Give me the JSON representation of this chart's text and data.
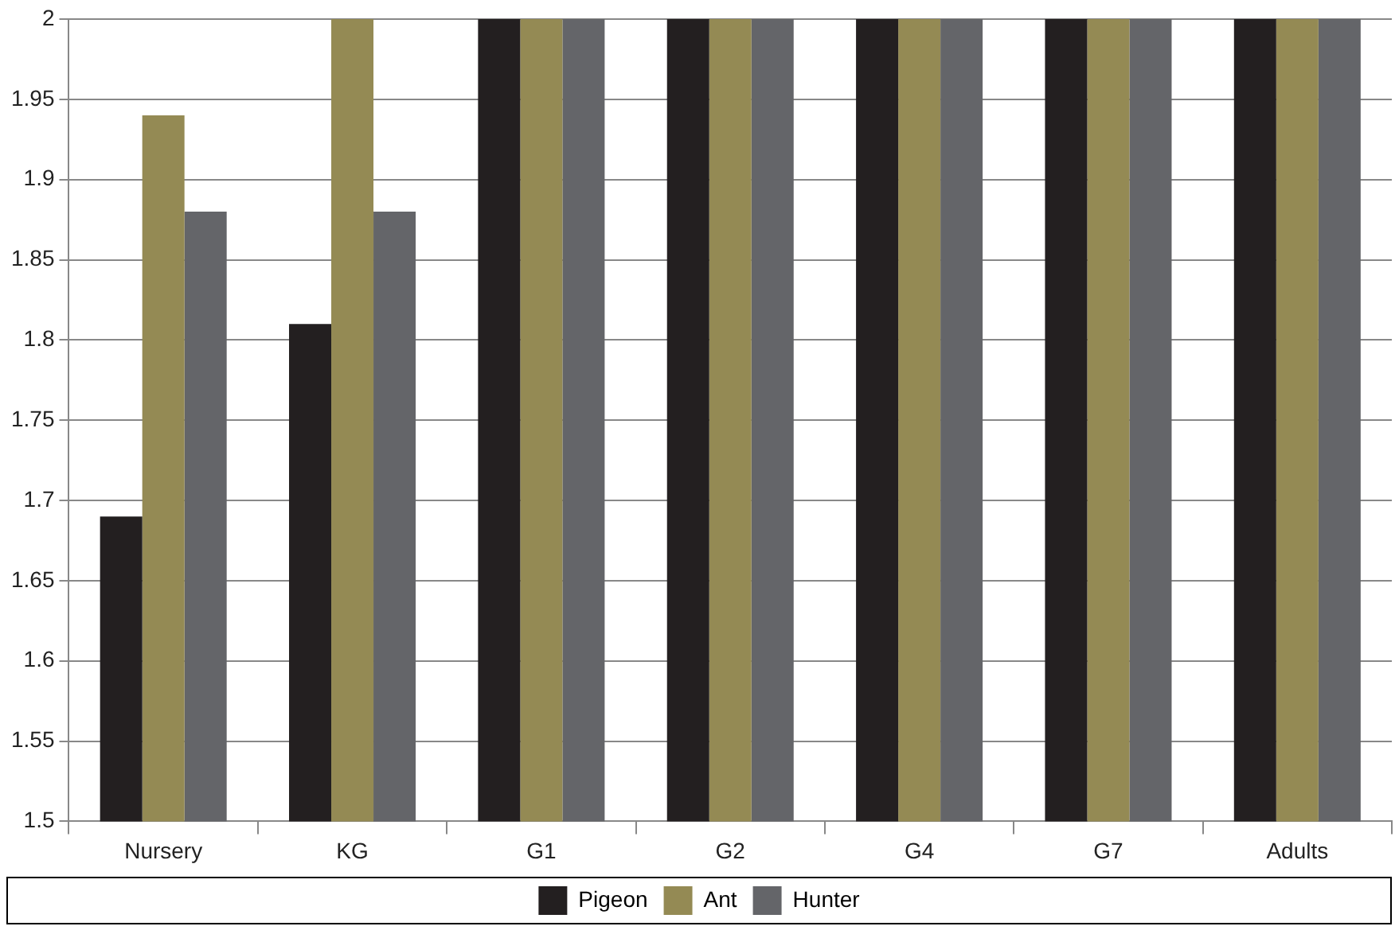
{
  "chart_data": {
    "type": "bar",
    "categories": [
      "Nursery",
      "KG",
      "G1",
      "G2",
      "G4",
      "G7",
      "Adults"
    ],
    "series": [
      {
        "name": "Pigeon",
        "color": "#231f20",
        "values": [
          1.69,
          1.81,
          2,
          2,
          2,
          2,
          2
        ]
      },
      {
        "name": "Ant",
        "color": "#948a54",
        "values": [
          1.94,
          2,
          2,
          2,
          2,
          2,
          2
        ]
      },
      {
        "name": "Hunter",
        "color": "#646569",
        "values": [
          1.88,
          1.88,
          2,
          2,
          2,
          2,
          2
        ]
      }
    ],
    "ylim": [
      1.5,
      2
    ],
    "yticks": [
      1.5,
      1.55,
      1.6,
      1.65,
      1.7,
      1.75,
      1.8,
      1.85,
      1.9,
      1.95,
      2
    ],
    "grid": "y",
    "legend": "bottom"
  }
}
